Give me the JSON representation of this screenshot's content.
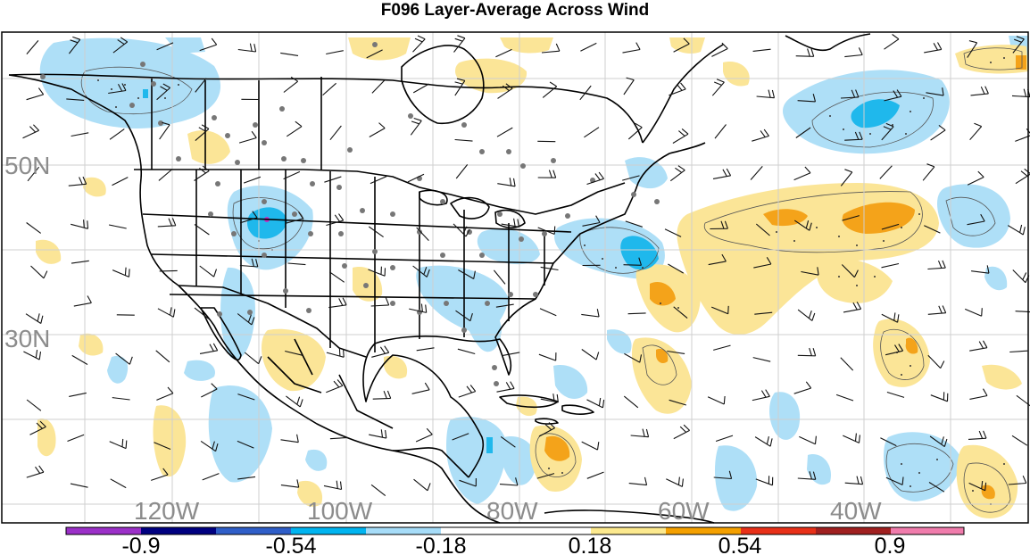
{
  "title": "F096 Layer-Average Across Wind",
  "map": {
    "region": "North America and western North Atlantic",
    "latitude_labels": [
      "50N",
      "30N"
    ],
    "longitude_labels": [
      "120W",
      "100W",
      "80W",
      "60W",
      "40W"
    ],
    "gridlines": true
  },
  "colorbar": {
    "tick_labels": [
      "-0.9",
      "-0.54",
      "-0.18",
      "0.18",
      "0.54",
      "0.9"
    ],
    "colors": [
      "#9b30c8",
      "#000080",
      "#2f5ec8",
      "#00b4f0",
      "#a6dcf8",
      "#ffffff",
      "#fce98e",
      "#f4a000",
      "#e83018",
      "#a02020",
      "#f07cac"
    ]
  },
  "anomaly_colors": {
    "strong_negative": "#1fb8ec",
    "negative": "#aedff7",
    "positive": "#fbe597",
    "strong_positive": "#f4a31a",
    "center": "#c030c0"
  }
}
